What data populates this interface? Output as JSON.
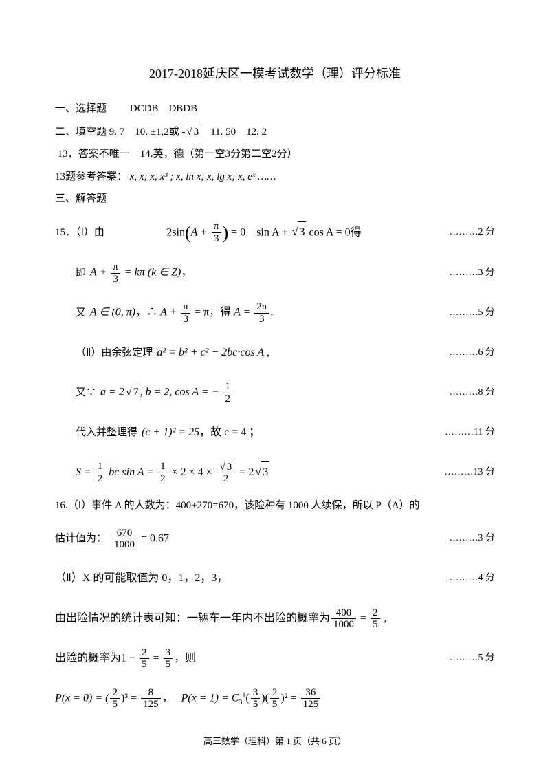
{
  "title": "2017-2018延庆区一模考试数学（理）评分标准",
  "section1_label": "一、选择题",
  "section1_answers": "DCDB　DBDB",
  "section2_label": "二、填空题",
  "section2_text": "9. 7　10. ±1,2或 -",
  "section2_sqrt3": "3",
  "section2_tail": "　11. 50　12. 2",
  "line13": "13．答案不唯一　14.英，德（第一空3分第二空2分）",
  "line13ref_label": "13题参考答案：",
  "line13ref_math": "x, x; x, x³ ; x, ln x; x, lg x; x, eˣ ……",
  "section3_label": "三、解答题",
  "q15_label": "15．（Ⅰ）由",
  "q15_eq1_left": "2sin",
  "q15_eq1_paren": "A + ",
  "q15_eq1_pi3_n": "π",
  "q15_eq1_pi3_d": "3",
  "q15_eq1_mid": " = 0　sin A + ",
  "q15_eq1_sqrt3": "3",
  "q15_eq1_right": " cos A = 0得",
  "score2": "………2 分",
  "q15_eq2_pre": "即",
  "q15_eq2_a": "A + ",
  "q15_eq2_mid": " = kπ (k ∈ Z)",
  "q15_eq2_post": "，",
  "score3": "………3 分",
  "q15_eq3_pre": "又",
  "q15_eq3_a": "A ∈ (0, π)",
  "q15_eq3_b": "，∴ ",
  "q15_eq3_c": " = π",
  "q15_eq3_d": "，得 ",
  "q15_eq3_e": "A = ",
  "q15_eq3_2pi_n": "2π",
  "q15_eq3_2pi_d": "3",
  "q15_eq3_f": ".",
  "score5": "………5 分",
  "q15_II_label": "（Ⅱ）由余弦定理",
  "q15_II_eq": "a² = b² + c² − 2bc·cos A ,",
  "score6": "………6 分",
  "q15_eq5_pre": "又∵",
  "q15_eq5_a": "a = 2",
  "q15_eq5_sqrt7": "7",
  "q15_eq5_b": ", b = 2, cos A = − ",
  "q15_eq5_half_n": "1",
  "q15_eq5_half_d": "2",
  "score8": "………8 分",
  "q15_eq6_pre": "代入并整理得",
  "q15_eq6_eq": "(c + 1)² = 25",
  "q15_eq6_post": "，故 c = 4 ；",
  "score11": "………11 分",
  "q15_eq7_a": "S = ",
  "q15_eq7_b": " bc sin A = ",
  "q15_eq7_c": " × 2 × 4 × ",
  "q15_eq7_sqrt3_n": "3",
  "q15_eq7_d": " = 2",
  "score13": "………13 分",
  "q16_label": "16.（Ⅰ）事件 A 的人数为：400+270=670，该险种有 1000 人续保，所以 P（A）的",
  "q16_line2_pre": "估计值为：",
  "q16_frac670_n": "670",
  "q16_frac670_d": "1000",
  "q16_line2_post": " = 0.67",
  "score3b": "………3 分",
  "q16_II": "（Ⅱ）X 的可能取值为 0，1，2，3，",
  "score4": "………4 分",
  "q16_line4_pre": "由出险情况的统计表可知：一辆车一年内不出险的概率为",
  "q16_frac400_n": "400",
  "q16_frac400_d": "1000",
  "q16_line4_mid": " = ",
  "q16_frac25_n": "2",
  "q16_frac25_d": "5",
  "q16_line4_post": " ,",
  "q16_line5_pre": "出险的概率为",
  "q16_line5_one": "1 − ",
  "q16_line5_eq": " = ",
  "q16_frac35_n": "3",
  "q16_frac35_d": "5",
  "q16_line5_post": "，则",
  "score5b": "………5 分",
  "q16_p0_a": "P(x = 0) = (",
  "q16_p0_b": ")³ = ",
  "q16_frac8_n": "8",
  "q16_frac8_d": "125",
  "q16_p0_c": "，",
  "q16_p1_a": "P(x = 1) = C",
  "q16_p1_sub": "3",
  "q16_p1_sup": "1",
  "q16_p1_b": "(",
  "q16_p1_c": ")(",
  "q16_p1_d": ")² = ",
  "q16_frac36_n": "36",
  "q16_frac36_d": "125",
  "footer": "高三数学（理科）第 1 页（共 6 页）"
}
